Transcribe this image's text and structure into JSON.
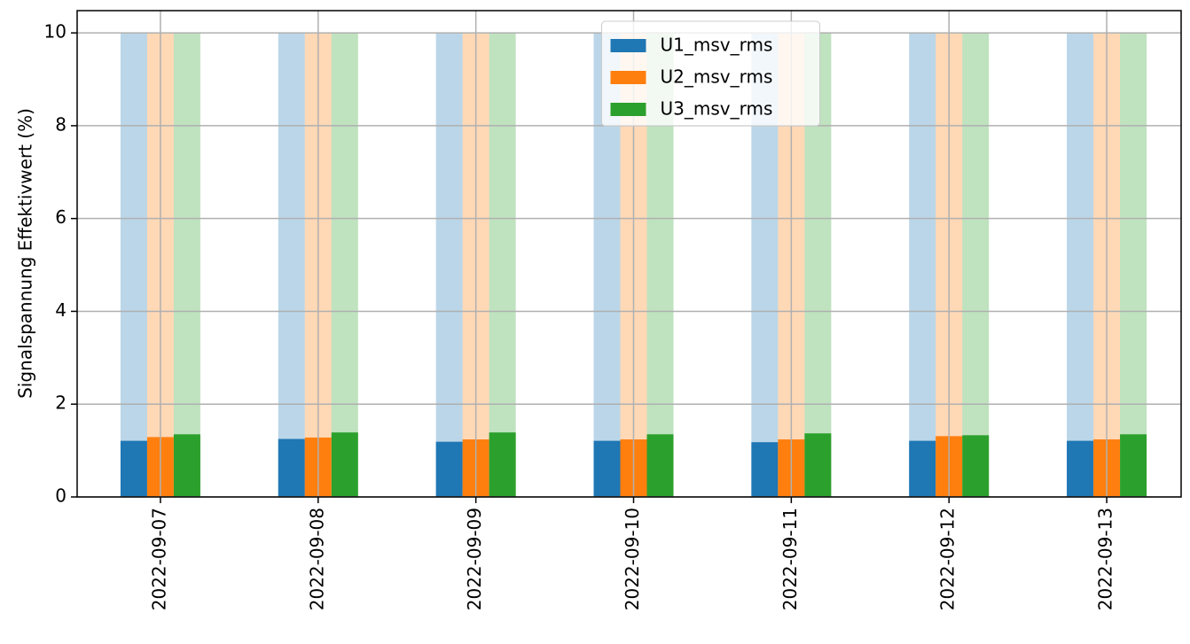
{
  "chart_data": {
    "type": "bar",
    "ylabel": "Signalspannung Effektivwert (%)",
    "categories": [
      "2022-09-07",
      "2022-09-08",
      "2022-09-09",
      "2022-09-10",
      "2022-09-11",
      "2022-09-12",
      "2022-09-13"
    ],
    "series": [
      {
        "name": "U1_msv_rms",
        "color": "#1f77b4",
        "values": [
          1.21,
          1.25,
          1.19,
          1.21,
          1.18,
          1.21,
          1.21
        ],
        "limit_values": [
          10,
          10,
          10,
          10,
          10,
          10,
          10
        ]
      },
      {
        "name": "U2_msv_rms",
        "color": "#ff7f0e",
        "values": [
          1.29,
          1.28,
          1.24,
          1.24,
          1.24,
          1.31,
          1.24
        ],
        "limit_values": [
          10,
          10,
          10,
          10,
          10,
          10,
          10
        ]
      },
      {
        "name": "U3_msv_rms",
        "color": "#2ca02c",
        "values": [
          1.35,
          1.39,
          1.39,
          1.35,
          1.37,
          1.33,
          1.35
        ],
        "limit_values": [
          10,
          10,
          10,
          10,
          10,
          10,
          10
        ]
      }
    ],
    "limit_alpha": 0.3,
    "ylim": [
      0,
      10.48
    ],
    "yticks": [
      0,
      2,
      4,
      6,
      8,
      10
    ],
    "grid": true,
    "legend": "upper center"
  }
}
